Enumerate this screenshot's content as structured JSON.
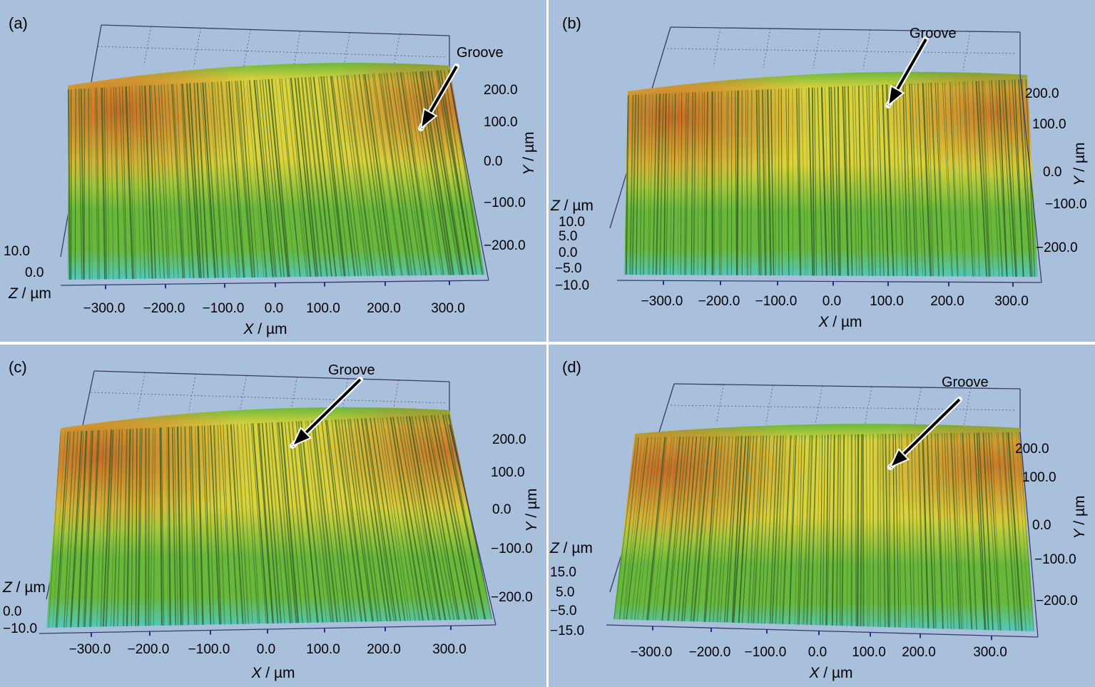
{
  "figure": {
    "annotation": "Groove",
    "panels": [
      {
        "id": "a",
        "label": "(a)",
        "x_axis": {
          "title_var": "X",
          "title_unit": " / µm",
          "ticks": [
            "−300.0",
            "−200.0",
            "−100.0",
            "0.0",
            "100.0",
            "200.0",
            "300.0"
          ]
        },
        "y_axis": {
          "title_var": "Y",
          "title_unit": " / µm",
          "ticks": [
            "200.0",
            "100.0",
            "0.0",
            "−100.0",
            "−200.0"
          ]
        },
        "z_axis": {
          "title_var": "Z",
          "title_unit": " / µm",
          "ticks": [
            "10.0",
            "0.0"
          ]
        }
      },
      {
        "id": "b",
        "label": "(b)",
        "x_axis": {
          "title_var": "X",
          "title_unit": " / µm",
          "ticks": [
            "−300.0",
            "−200.0",
            "−100.0",
            "0.0",
            "100.0",
            "200.0",
            "300.0"
          ]
        },
        "y_axis": {
          "title_var": "Y",
          "title_unit": " / µm",
          "ticks": [
            "200.0",
            "100.0",
            "0.0",
            "−100.0",
            "−200.0"
          ]
        },
        "z_axis": {
          "title_var": "Z",
          "title_unit": " / µm",
          "ticks": [
            "10.0",
            "5.0",
            "0.0",
            "−5.0",
            "−10.0"
          ]
        }
      },
      {
        "id": "c",
        "label": "(c)",
        "x_axis": {
          "title_var": "X",
          "title_unit": " / µm",
          "ticks": [
            "−300.0",
            "−200.0",
            "−100.0",
            "0.0",
            "100.0",
            "200.0",
            "300.0"
          ]
        },
        "y_axis": {
          "title_var": "Y",
          "title_unit": " / µm",
          "ticks": [
            "200.0",
            "100.0",
            "0.0",
            "−100.0",
            "−200.0"
          ]
        },
        "z_axis": {
          "title_var": "Z",
          "title_unit": " / µm",
          "ticks": [
            "0.0",
            "−10.0"
          ]
        }
      },
      {
        "id": "d",
        "label": "(d)",
        "x_axis": {
          "title_var": "X",
          "title_unit": " / µm",
          "ticks": [
            "−300.0",
            "−200.0",
            "−100.0",
            "0.0",
            "100.0",
            "200.0",
            "300.0"
          ]
        },
        "y_axis": {
          "title_var": "Y",
          "title_unit": " / µm",
          "ticks": [
            "200.0",
            "100.0",
            "0.0",
            "−100.0",
            "−200.0"
          ]
        },
        "z_axis": {
          "title_var": "Z",
          "title_unit": " / µm",
          "ticks": [
            "15.0",
            "5.0",
            "−5.0",
            "−15.0"
          ]
        }
      }
    ],
    "colors": {
      "background": "#a9c0dc",
      "frame": "#3a3a6a",
      "surface_red": "#c45a24",
      "surface_yellow": "#dcd23c",
      "surface_green": "#68b83c",
      "surface_cyan": "#52c8c0",
      "groove_line": "#2f5a26"
    }
  }
}
